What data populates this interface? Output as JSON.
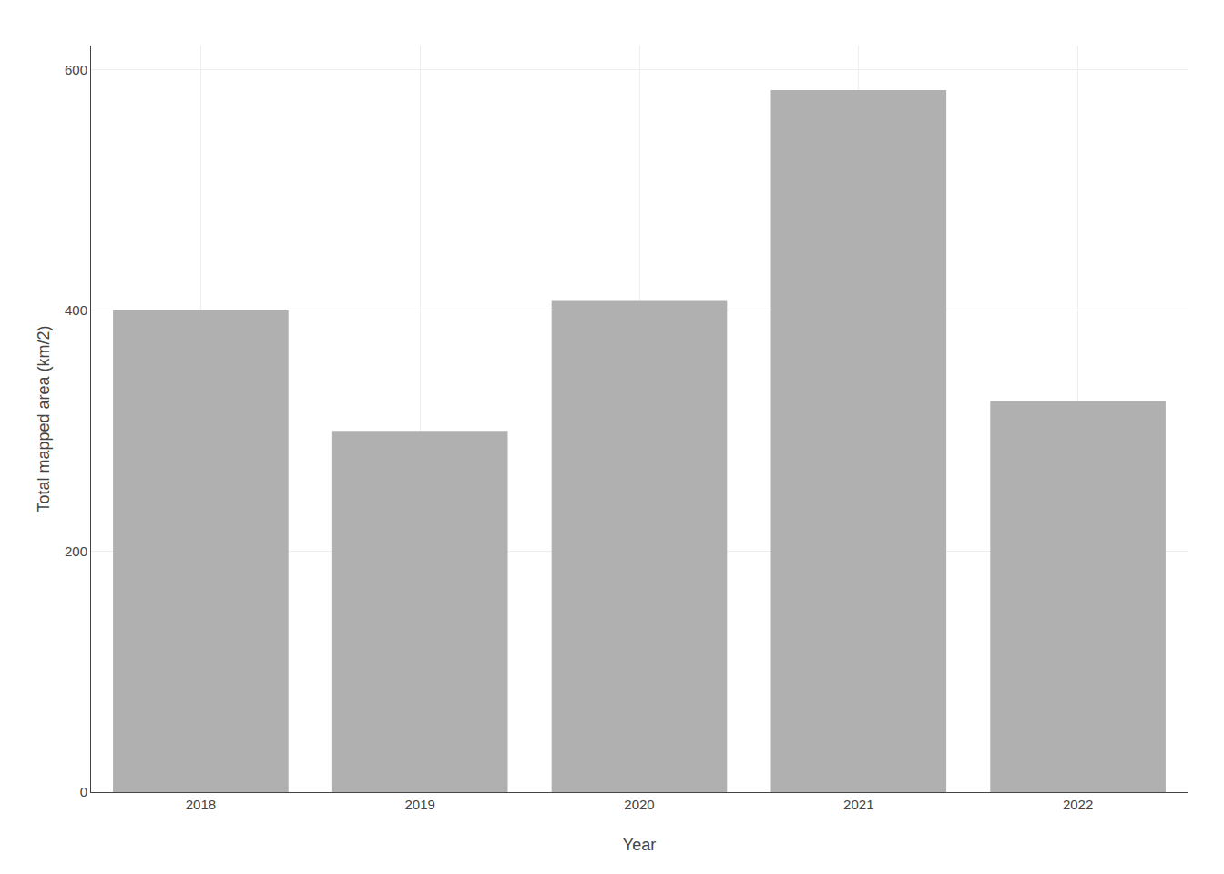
{
  "chart_data": {
    "type": "bar",
    "categories": [
      "2018",
      "2019",
      "2020",
      "2021",
      "2022"
    ],
    "values": [
      400,
      300,
      408,
      583,
      325
    ],
    "color": "#b0b0b0",
    "xlabel": "Year",
    "ylabel": "Total mapped area (km/2)",
    "ylim": [
      0,
      620
    ],
    "yticks": [
      0,
      200,
      400,
      600
    ],
    "grid": true
  }
}
